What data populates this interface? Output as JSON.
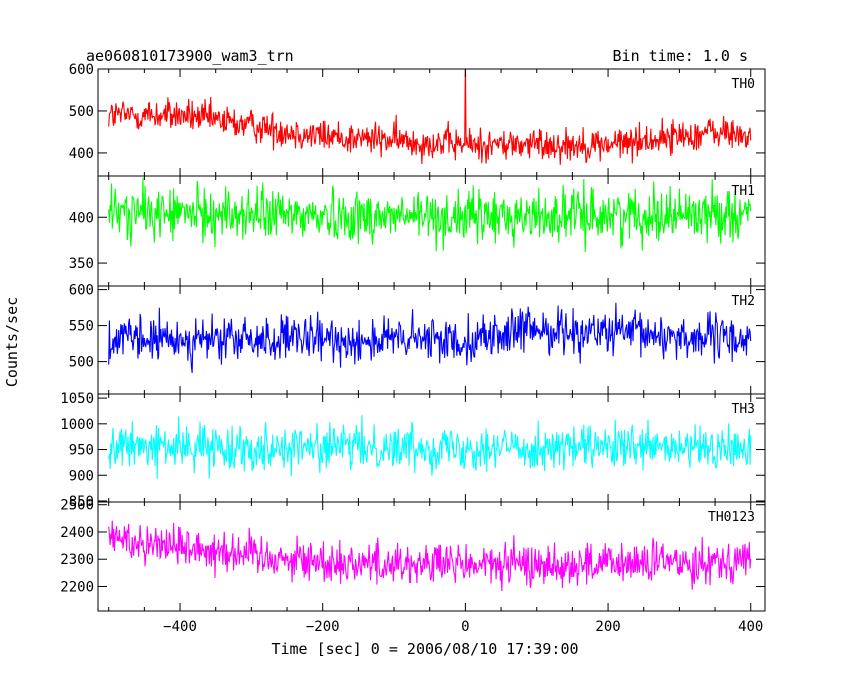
{
  "header": {
    "title": "ae060810173900_wam3_trn",
    "bin_time": "Bin time: 1.0 s"
  },
  "chart_data": {
    "type": "line",
    "xlabel": "Time [sec] 0 = 2006/08/10 17:39:00",
    "ylabel": "Counts/sec",
    "xlim": [
      -515,
      420
    ],
    "x_ticks": [
      -400,
      -200,
      0,
      200,
      400
    ],
    "x_tick_labels": [
      "−400",
      "−200",
      "0",
      "200",
      "400"
    ],
    "x_data_range": [
      -500,
      400
    ],
    "panels": [
      {
        "name": "TH0",
        "color": "#ff0000",
        "ylim": [
          345,
          600
        ],
        "y_ticks": [
          400,
          500,
          600
        ],
        "trend": [
          [
            -500,
            490
          ],
          [
            -400,
            490
          ],
          [
            -200,
            440
          ],
          [
            0,
            420
          ],
          [
            200,
            420
          ],
          [
            350,
            450
          ],
          [
            400,
            440
          ]
        ],
        "noise": 28,
        "spikes": [
          {
            "x": 0,
            "y": 600
          }
        ]
      },
      {
        "name": "TH1",
        "color": "#00ff00",
        "ylim": [
          325,
          445
        ],
        "y_ticks": [
          350,
          400
        ],
        "trend": [
          [
            -500,
            405
          ],
          [
            0,
            400
          ],
          [
            400,
            405
          ]
        ],
        "noise": 20,
        "spikes": []
      },
      {
        "name": "TH2",
        "color": "#0000ff",
        "ylim": [
          455,
          605
        ],
        "y_ticks": [
          500,
          550,
          600
        ],
        "trend": [
          [
            -500,
            530
          ],
          [
            0,
            530
          ],
          [
            100,
            545
          ],
          [
            400,
            530
          ]
        ],
        "noise": 22,
        "spikes": []
      },
      {
        "name": "TH3",
        "color": "#00ffff",
        "ylim": [
          848,
          1058
        ],
        "y_ticks": [
          850,
          900,
          950,
          1000,
          1050
        ],
        "trend": [
          [
            -500,
            955
          ],
          [
            0,
            955
          ],
          [
            400,
            950
          ]
        ],
        "noise": 30,
        "spikes": []
      },
      {
        "name": "TH0123",
        "color": "#ff00ff",
        "ylim": [
          2110,
          2510
        ],
        "y_ticks": [
          2200,
          2300,
          2400,
          2500
        ],
        "trend": [
          [
            -500,
            2380
          ],
          [
            -400,
            2350
          ],
          [
            -200,
            2290
          ],
          [
            0,
            2280
          ],
          [
            200,
            2280
          ],
          [
            400,
            2300
          ]
        ],
        "noise": 55,
        "spikes": []
      }
    ]
  }
}
